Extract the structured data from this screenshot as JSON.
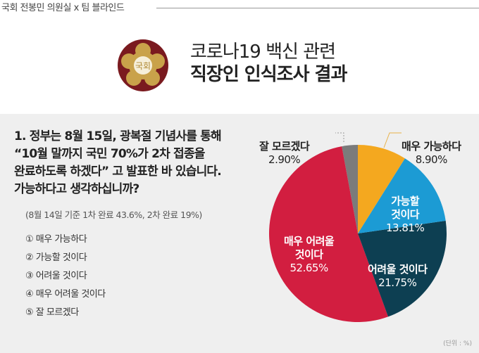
{
  "header": {
    "credit": "국회 전봉민 의원실 x 팀 블라인드",
    "emblem_text": "국회",
    "title_line1": "코로나19 백신 관련",
    "title_line2": "직장인 인식조사 결과"
  },
  "question": {
    "text": "1. 정부는 8월 15일, 광복절 기념사를 통해\n    “10월 말까지 국민 70%가 2차 접종을\n    완료하도록 하겠다” 고 발표한 바 있습니다.\n    가능하다고 생각하십니까?",
    "note": "(8월 14일 기준 1차 완료 43.6%, 2차 완료 19%)",
    "options": [
      "① 매우 가능하다",
      "② 가능할 것이다",
      "③ 어려울 것이다",
      "④ 매우 어려울 것이다",
      "⑤ 잘 모르겠다"
    ]
  },
  "chart_data": {
    "type": "pie",
    "title": "",
    "unit_note": "(단위 : %)",
    "start": "top, clockwise",
    "slices": [
      {
        "label": "매우 가능하다",
        "value": 8.9,
        "display": "8.90%",
        "color": "#f4a81f"
      },
      {
        "label": "가능할\n것이다",
        "value": 13.81,
        "display": "13.81%",
        "color": "#1c9bd4"
      },
      {
        "label": "어려울 것이다",
        "value": 21.75,
        "display": "21.75%",
        "color": "#0d3f52"
      },
      {
        "label": "매우 어려울\n것이다",
        "value": 52.65,
        "display": "52.65%",
        "color": "#d21e40"
      },
      {
        "label": "잘 모르겠다",
        "value": 2.9,
        "display": "2.90%",
        "color": "#7b7b7b"
      }
    ]
  }
}
